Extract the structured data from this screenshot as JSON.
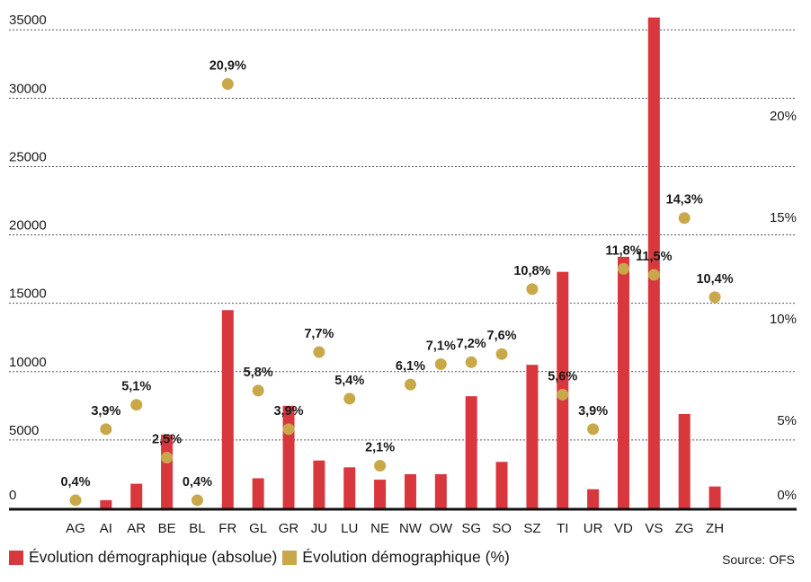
{
  "chart_data": {
    "type": "bar+scatter",
    "categories": [
      "AG",
      "AI",
      "AR",
      "BE",
      "BL",
      "FR",
      "GL",
      "GR",
      "JU",
      "LU",
      "NE",
      "NW",
      "OW",
      "SG",
      "SO",
      "SZ",
      "TI",
      "UR",
      "VD",
      "VS",
      "ZG",
      "ZH"
    ],
    "series": [
      {
        "name": "Évolution démographique (absolue)",
        "axis": "left",
        "color": "#d9373e",
        "values": [
          0,
          600,
          1800,
          5400,
          0,
          14500,
          2200,
          7500,
          3500,
          3000,
          2100,
          2500,
          2500,
          8200,
          3400,
          10500,
          17300,
          1400,
          18400,
          35900,
          6900,
          1600
        ]
      },
      {
        "name": "Évolution démographique (%)",
        "axis": "right",
        "color": "#c9a84a",
        "values": [
          0.4,
          3.9,
          5.1,
          2.5,
          0.4,
          20.9,
          5.8,
          3.9,
          7.7,
          5.4,
          2.1,
          6.1,
          7.1,
          7.2,
          7.6,
          10.8,
          5.6,
          3.9,
          11.8,
          11.5,
          14.3,
          10.4
        ],
        "labels": [
          "0,4%",
          "3,9%",
          "5,1%",
          "2,5%",
          "0,4%",
          "20,9%",
          "5,8%",
          "3,9%",
          "7,7%",
          "5,4%",
          "2,1%",
          "6,1%",
          "7,1%",
          "7,2%",
          "7,6%",
          "10,8%",
          "5,6%",
          "3,9%",
          "11,8%",
          "11,5%",
          "14,3%",
          "10,4%"
        ]
      }
    ],
    "y_left": {
      "ticks": [
        "0",
        "5000",
        "10000",
        "15000",
        "20000",
        "25000",
        "30000",
        "35000"
      ],
      "values": [
        0,
        5000,
        10000,
        15000,
        20000,
        25000,
        30000,
        35000
      ],
      "ylim": [
        0,
        36000
      ]
    },
    "y_right": {
      "ticks": [
        "0%",
        "5%",
        "10%",
        "15%",
        "20%"
      ],
      "values": [
        0,
        5,
        10,
        15,
        20
      ],
      "ylim": [
        0,
        23.8
      ]
    },
    "grid": true,
    "legend_position": "bottom-left"
  },
  "legend": {
    "absolute": "Évolution démographique (absolue)",
    "percent": "Évolution démographique (%)"
  },
  "source": "Source: OFS",
  "colors": {
    "bar": "#d9373e",
    "dot": "#c9a84a",
    "grid": "#555555",
    "axis": "#111111"
  }
}
